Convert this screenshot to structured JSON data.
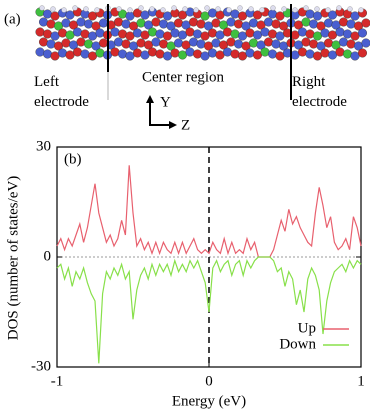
{
  "panel_a": {
    "label": "(a)",
    "left_label": "Left electrode",
    "center_label": "Center region",
    "right_label": "Right electrode",
    "axis_y": "Y",
    "axis_z": "Z"
  },
  "chart_data": {
    "type": "line",
    "panel_label": "(b)",
    "xlabel": "Energy (eV)",
    "ylabel": "DOS (number of states/eV)",
    "xlim": [
      -1,
      1
    ],
    "xticks": [
      -1,
      0,
      1
    ],
    "ylim": [
      -30,
      30
    ],
    "yticks": [
      -30,
      0,
      30
    ],
    "legend": "lower right",
    "x": [
      -1,
      -0.975,
      -0.95,
      -0.925,
      -0.9,
      -0.875,
      -0.85,
      -0.825,
      -0.8,
      -0.775,
      -0.75,
      -0.725,
      -0.7,
      -0.675,
      -0.65,
      -0.625,
      -0.6,
      -0.575,
      -0.55,
      -0.525,
      -0.5,
      -0.475,
      -0.45,
      -0.425,
      -0.4,
      -0.375,
      -0.35,
      -0.325,
      -0.3,
      -0.275,
      -0.25,
      -0.225,
      -0.2,
      -0.175,
      -0.15,
      -0.125,
      -0.1,
      -0.075,
      -0.05,
      -0.025,
      0,
      0.025,
      0.05,
      0.075,
      0.1,
      0.125,
      0.15,
      0.175,
      0.2,
      0.225,
      0.25,
      0.275,
      0.3,
      0.325,
      0.35,
      0.375,
      0.4,
      0.425,
      0.45,
      0.475,
      0.5,
      0.525,
      0.55,
      0.575,
      0.6,
      0.625,
      0.65,
      0.675,
      0.7,
      0.725,
      0.75,
      0.775,
      0.8,
      0.825,
      0.85,
      0.875,
      0.9,
      0.925,
      0.95,
      0.975,
      1
    ],
    "series": [
      {
        "name": "Up",
        "color": "#e8606e",
        "values": [
          3,
          5,
          2,
          5,
          3,
          6,
          9,
          4,
          8,
          14,
          20,
          12,
          8,
          4,
          6,
          3,
          5,
          10,
          6,
          25,
          12,
          3,
          5,
          2,
          4,
          1,
          4,
          1,
          4,
          2,
          1,
          4,
          1,
          4,
          1,
          3,
          5,
          2,
          1,
          2,
          1,
          4,
          2,
          1,
          5,
          1,
          4,
          1,
          2,
          1,
          5,
          2,
          4,
          0,
          0,
          0,
          0,
          2,
          6,
          10,
          7,
          13,
          9,
          11,
          8,
          6,
          4,
          3,
          12,
          19,
          14,
          8,
          11,
          4,
          2,
          3,
          5,
          2,
          11,
          8,
          3
        ]
      },
      {
        "name": "Down",
        "color": "#88e04a",
        "values": [
          -3,
          -2,
          -6,
          -3,
          -8,
          -4,
          -6,
          -3,
          -7,
          -10,
          -12,
          -29,
          -10,
          -4,
          -6,
          -3,
          -5,
          -2,
          -6,
          -4,
          -17,
          -9,
          -5,
          -3,
          -6,
          -2,
          -5,
          -2,
          -4,
          -2,
          -5,
          -1,
          -4,
          -2,
          -4,
          -1,
          -3,
          -1,
          -4,
          -7,
          -15,
          -3,
          -1,
          -4,
          -2,
          -1,
          -5,
          -2,
          -1,
          -5,
          -1,
          -3,
          -1,
          0,
          0,
          0,
          0,
          -1,
          -4,
          -3,
          -8,
          -4,
          -6,
          -13,
          -9,
          -15,
          -6,
          -3,
          -5,
          -9,
          -21,
          -12,
          -7,
          -4,
          -3,
          -2,
          -4,
          -1,
          -3,
          -1,
          -2
        ]
      }
    ]
  }
}
